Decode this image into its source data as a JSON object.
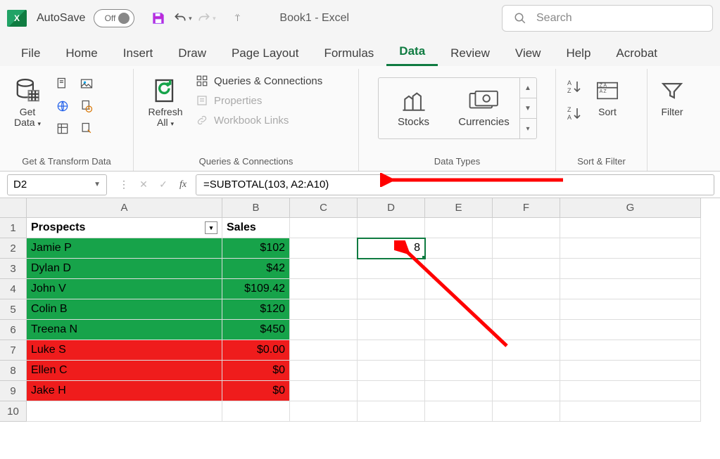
{
  "titlebar": {
    "autosave_label": "AutoSave",
    "autosave_state": "Off",
    "document_title": "Book1  -  Excel",
    "search_placeholder": "Search"
  },
  "tabs": {
    "file": "File",
    "home": "Home",
    "insert": "Insert",
    "draw": "Draw",
    "page_layout": "Page Layout",
    "formulas": "Formulas",
    "data": "Data",
    "review": "Review",
    "view": "View",
    "help": "Help",
    "acrobat": "Acrobat"
  },
  "ribbon": {
    "get_data": "Get\nData",
    "group_transform": "Get & Transform Data",
    "refresh_all": "Refresh\nAll",
    "queries_connections": "Queries & Connections",
    "properties": "Properties",
    "workbook_links": "Workbook Links",
    "group_queries": "Queries & Connections",
    "stocks": "Stocks",
    "currencies": "Currencies",
    "group_data_types": "Data Types",
    "sort": "Sort",
    "filter": "Filter",
    "group_sort": "Sort & Filter"
  },
  "formula_bar": {
    "name_box": "D2",
    "formula": "=SUBTOTAL(103, A2:A10)"
  },
  "grid": {
    "col_widths": {
      "A": 278,
      "B": 96,
      "C": 96,
      "D": 96,
      "E": 96,
      "F": 96,
      "G": 200
    },
    "columns": [
      "A",
      "B",
      "C",
      "D",
      "E",
      "F",
      "G"
    ],
    "row_count": 10,
    "headers": {
      "A": "Prospects",
      "B": "Sales"
    },
    "rows": [
      {
        "a": "Jamie P",
        "b": "$102",
        "cls": "green"
      },
      {
        "a": "Dylan D",
        "b": "$42",
        "cls": "green"
      },
      {
        "a": "John V",
        "b": "$109.42",
        "cls": "green"
      },
      {
        "a": "Colin B",
        "b": "$120",
        "cls": "green"
      },
      {
        "a": "Treena N",
        "b": "$450",
        "cls": "green"
      },
      {
        "a": "Luke S",
        "b": "$0.00",
        "cls": "red"
      },
      {
        "a": "Ellen C",
        "b": "$0",
        "cls": "red"
      },
      {
        "a": "Jake H",
        "b": "$0",
        "cls": "red"
      }
    ],
    "d2_value": "8",
    "selected": "D2"
  },
  "colors": {
    "green": "#17a34a",
    "red": "#ef1c1c",
    "accent": "#0f7b41",
    "arrow": "#ff0000"
  }
}
